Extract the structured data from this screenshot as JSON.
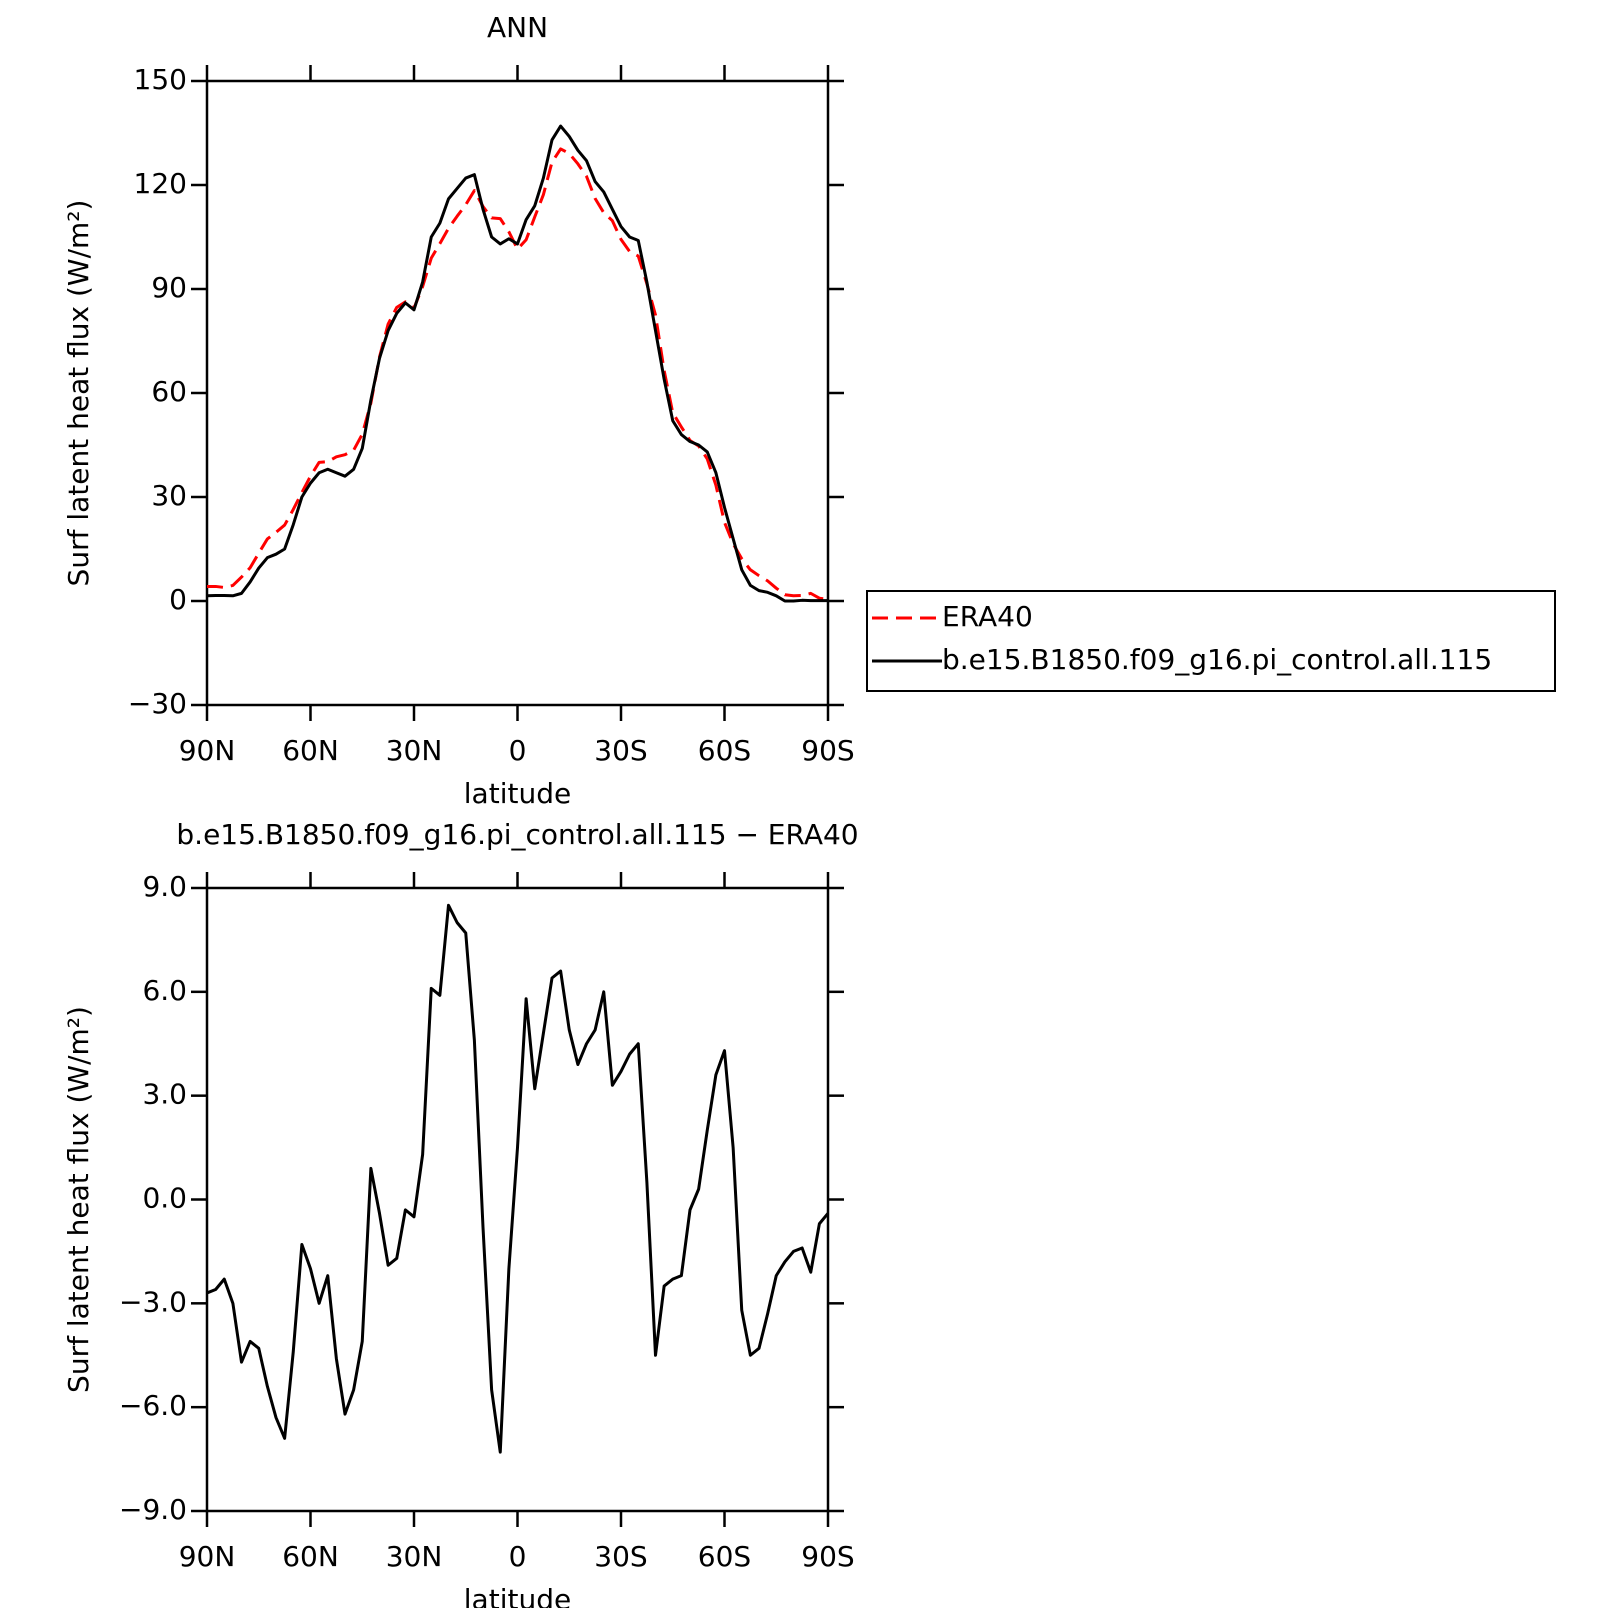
{
  "chart_data": [
    {
      "type": "line",
      "title": "ANN",
      "xlabel": "latitude",
      "ylabel": "Surf latent heat flux (W/m²)",
      "x": [
        90,
        87.5,
        85,
        82.5,
        80,
        77.5,
        75,
        72.5,
        70,
        67.5,
        65,
        62.5,
        60,
        57.5,
        55,
        52.5,
        50,
        47.5,
        45,
        42.5,
        40,
        37.5,
        35,
        32.5,
        30,
        27.5,
        25,
        22.5,
        20,
        17.5,
        15,
        12.5,
        10,
        7.5,
        5,
        2.5,
        0,
        -2.5,
        -5,
        -7.5,
        -10,
        -12.5,
        -15,
        -17.5,
        -20,
        -22.5,
        -25,
        -27.5,
        -30,
        -32.5,
        -35,
        -37.5,
        -40,
        -42.5,
        -45,
        -47.5,
        -50,
        -52.5,
        -55,
        -57.5,
        -60,
        -62.5,
        -65,
        -67.5,
        -70,
        -72.5,
        -75,
        -77.5,
        -80,
        -82.5,
        -85,
        -87.5,
        -90
      ],
      "series": [
        {
          "name": "ERA40",
          "color": "#ff0000",
          "dash": "dashed",
          "values": [
            4.2,
            4.2,
            3.9,
            4.5,
            6.9,
            9.6,
            13.8,
            17.9,
            19.8,
            21.9,
            26.4,
            31.3,
            36,
            40,
            40.2,
            41.6,
            42.2,
            43.5,
            48.1,
            57.1,
            70.4,
            79.9,
            84.7,
            86.3,
            84.5,
            90.7,
            98.9,
            103.1,
            107.5,
            111,
            114.3,
            118.4,
            113.8,
            110.5,
            110.3,
            106.5,
            101.5,
            104.2,
            110.8,
            117.2,
            126.6,
            130.4,
            129.1,
            126.1,
            122.5,
            116.1,
            112,
            109.7,
            104.3,
            100.8,
            99.5,
            91.5,
            82.5,
            66.5,
            54.3,
            50.2,
            46.3,
            44.7,
            41,
            33.4,
            22.7,
            16.5,
            12.2,
            9,
            7.3,
            5.8,
            3.7,
            1.8,
            1.5,
            1.6,
            2.2,
            0.8,
            0.5
          ]
        },
        {
          "name": "b.e15.B1850.f09_g16.pi_control.all.115",
          "color": "#000000",
          "values": [
            1.5,
            1.6,
            1.6,
            1.5,
            2.2,
            5.5,
            9.5,
            12.5,
            13.5,
            15,
            22,
            30,
            34,
            37,
            38,
            37,
            36,
            38,
            44,
            58,
            70,
            78,
            83,
            86,
            84,
            92,
            105,
            109,
            116,
            119,
            122,
            123,
            113,
            105,
            103,
            104.5,
            103,
            110,
            114,
            122,
            133,
            137,
            134,
            130,
            127,
            121,
            118,
            113,
            108,
            105,
            104,
            92,
            78,
            64,
            52,
            48,
            46,
            45,
            43,
            37,
            27,
            18,
            9,
            4.5,
            3,
            2.5,
            1.5,
            0,
            0,
            0.2,
            0.1,
            0.1,
            0.1
          ]
        }
      ],
      "xlim": [
        90,
        -90
      ],
      "xticks": [
        {
          "value": 90,
          "label": "90N"
        },
        {
          "value": 60,
          "label": "60N"
        },
        {
          "value": 30,
          "label": "30N"
        },
        0,
        {
          "value": -30,
          "label": "30S"
        },
        {
          "value": -60,
          "label": "60S"
        },
        {
          "value": -90,
          "label": "90S"
        }
      ],
      "ylim": [
        -30,
        150
      ],
      "yticks": [
        {
          "value": -30,
          "label": "−30"
        },
        0,
        30,
        60,
        90,
        120,
        150
      ],
      "legend": "right"
    },
    {
      "type": "line",
      "title": "b.e15.B1850.f09_g16.pi_control.all.115 − ERA40",
      "xlabel": "latitude",
      "ylabel": "Surf latent heat flux (W/m²)",
      "x": [
        90,
        87.5,
        85,
        82.5,
        80,
        77.5,
        75,
        72.5,
        70,
        67.5,
        65,
        62.5,
        60,
        57.5,
        55,
        52.5,
        50,
        47.5,
        45,
        42.5,
        40,
        37.5,
        35,
        32.5,
        30,
        27.5,
        25,
        22.5,
        20,
        17.5,
        15,
        12.5,
        10,
        7.5,
        5,
        2.5,
        0,
        -2.5,
        -5,
        -7.5,
        -10,
        -12.5,
        -15,
        -17.5,
        -20,
        -22.5,
        -25,
        -27.5,
        -30,
        -32.5,
        -35,
        -37.5,
        -40,
        -42.5,
        -45,
        -47.5,
        -50,
        -52.5,
        -55,
        -57.5,
        -60,
        -62.5,
        -65,
        -67.5,
        -70,
        -72.5,
        -75,
        -77.5,
        -80,
        -82.5,
        -85,
        -87.5,
        -90
      ],
      "values": [
        -2.7,
        -2.6,
        -2.3,
        -3.0,
        -4.7,
        -4.1,
        -4.3,
        -5.4,
        -6.3,
        -6.9,
        -4.4,
        -1.3,
        -2.0,
        -3.0,
        -2.2,
        -4.6,
        -6.2,
        -5.5,
        -4.1,
        0.9,
        -0.4,
        -1.9,
        -1.7,
        -0.3,
        -0.5,
        1.3,
        6.1,
        5.9,
        8.5,
        8.0,
        7.7,
        4.6,
        -0.8,
        -5.5,
        -7.3,
        -2.0,
        1.5,
        5.8,
        3.2,
        4.8,
        6.4,
        6.6,
        4.9,
        3.9,
        4.5,
        4.9,
        6.0,
        3.3,
        3.7,
        4.2,
        4.5,
        0.5,
        -4.5,
        -2.5,
        -2.3,
        -2.2,
        -0.3,
        0.3,
        2.0,
        3.6,
        4.3,
        1.5,
        -3.2,
        -4.5,
        -4.3,
        -3.3,
        -2.2,
        -1.8,
        -1.5,
        -1.4,
        -2.1,
        -0.7,
        -0.4
      ],
      "color": "#000000",
      "xlim": [
        90,
        -90
      ],
      "xticks": [
        {
          "value": 90,
          "label": "90N"
        },
        {
          "value": 60,
          "label": "60N"
        },
        {
          "value": 30,
          "label": "30N"
        },
        0,
        {
          "value": -30,
          "label": "30S"
        },
        {
          "value": -60,
          "label": "60S"
        },
        {
          "value": -90,
          "label": "90S"
        }
      ],
      "ylim": [
        -9,
        9
      ],
      "yticks": [
        {
          "value": -9,
          "label": "−9.0"
        },
        {
          "value": -6,
          "label": "−6.0"
        },
        {
          "value": -3,
          "label": "−3.0"
        },
        {
          "value": 0,
          "label": "0.0"
        },
        {
          "value": 3,
          "label": "3.0"
        },
        {
          "value": 6,
          "label": "6.0"
        },
        {
          "value": 9,
          "label": "9.0"
        }
      ]
    }
  ]
}
